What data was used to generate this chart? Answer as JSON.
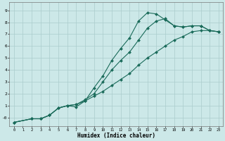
{
  "xlabel": "Humidex (Indice chaleur)",
  "ylabel": "",
  "bg_color": "#cce8e8",
  "grid_color": "#aacccc",
  "line_color": "#1a6b5a",
  "xlim": [
    -0.5,
    23.5
  ],
  "ylim": [
    -0.7,
    9.7
  ],
  "xticks": [
    0,
    1,
    2,
    3,
    4,
    5,
    6,
    7,
    8,
    9,
    10,
    11,
    12,
    13,
    14,
    15,
    16,
    17,
    18,
    19,
    20,
    21,
    22,
    23
  ],
  "yticks": [
    0,
    1,
    2,
    3,
    4,
    5,
    6,
    7,
    8,
    9
  ],
  "ytick_labels": [
    "-0",
    "1",
    "2",
    "3",
    "4",
    "5",
    "6",
    "7",
    "8",
    "9"
  ],
  "line1_x": [
    0,
    2,
    3,
    4,
    5,
    6,
    7,
    8,
    9,
    10,
    11,
    12,
    13,
    14,
    15,
    16,
    17,
    18,
    19,
    20,
    21,
    22,
    23
  ],
  "line1_y": [
    -0.4,
    -0.1,
    -0.1,
    0.2,
    0.8,
    1.0,
    1.1,
    1.4,
    1.8,
    2.2,
    2.7,
    3.2,
    3.7,
    4.4,
    5.0,
    5.5,
    6.0,
    6.5,
    6.8,
    7.2,
    7.3,
    7.3,
    7.2
  ],
  "line2_x": [
    0,
    2,
    3,
    4,
    5,
    6,
    7,
    8,
    9,
    10,
    11,
    12,
    13,
    14,
    15,
    16,
    17,
    18,
    19,
    20,
    21,
    22,
    23
  ],
  "line2_y": [
    -0.4,
    -0.1,
    -0.1,
    0.2,
    0.8,
    1.0,
    1.1,
    1.5,
    2.0,
    3.0,
    4.0,
    4.8,
    5.5,
    6.5,
    7.5,
    8.1,
    8.3,
    7.7,
    7.6,
    7.7,
    7.7,
    7.3,
    7.2
  ],
  "line3_x": [
    0,
    2,
    3,
    4,
    5,
    6,
    7,
    8,
    9,
    10,
    11,
    12,
    13,
    14,
    15,
    16,
    17,
    18,
    19,
    20,
    21,
    22,
    23
  ],
  "line3_y": [
    -0.4,
    -0.1,
    -0.1,
    0.2,
    0.8,
    1.0,
    0.9,
    1.4,
    2.5,
    3.5,
    4.8,
    5.8,
    6.7,
    8.1,
    8.8,
    8.7,
    8.2,
    7.7,
    7.6,
    7.7,
    7.7,
    7.3,
    7.2
  ],
  "marker": "D",
  "markersize": 2.0,
  "linewidth": 0.8
}
